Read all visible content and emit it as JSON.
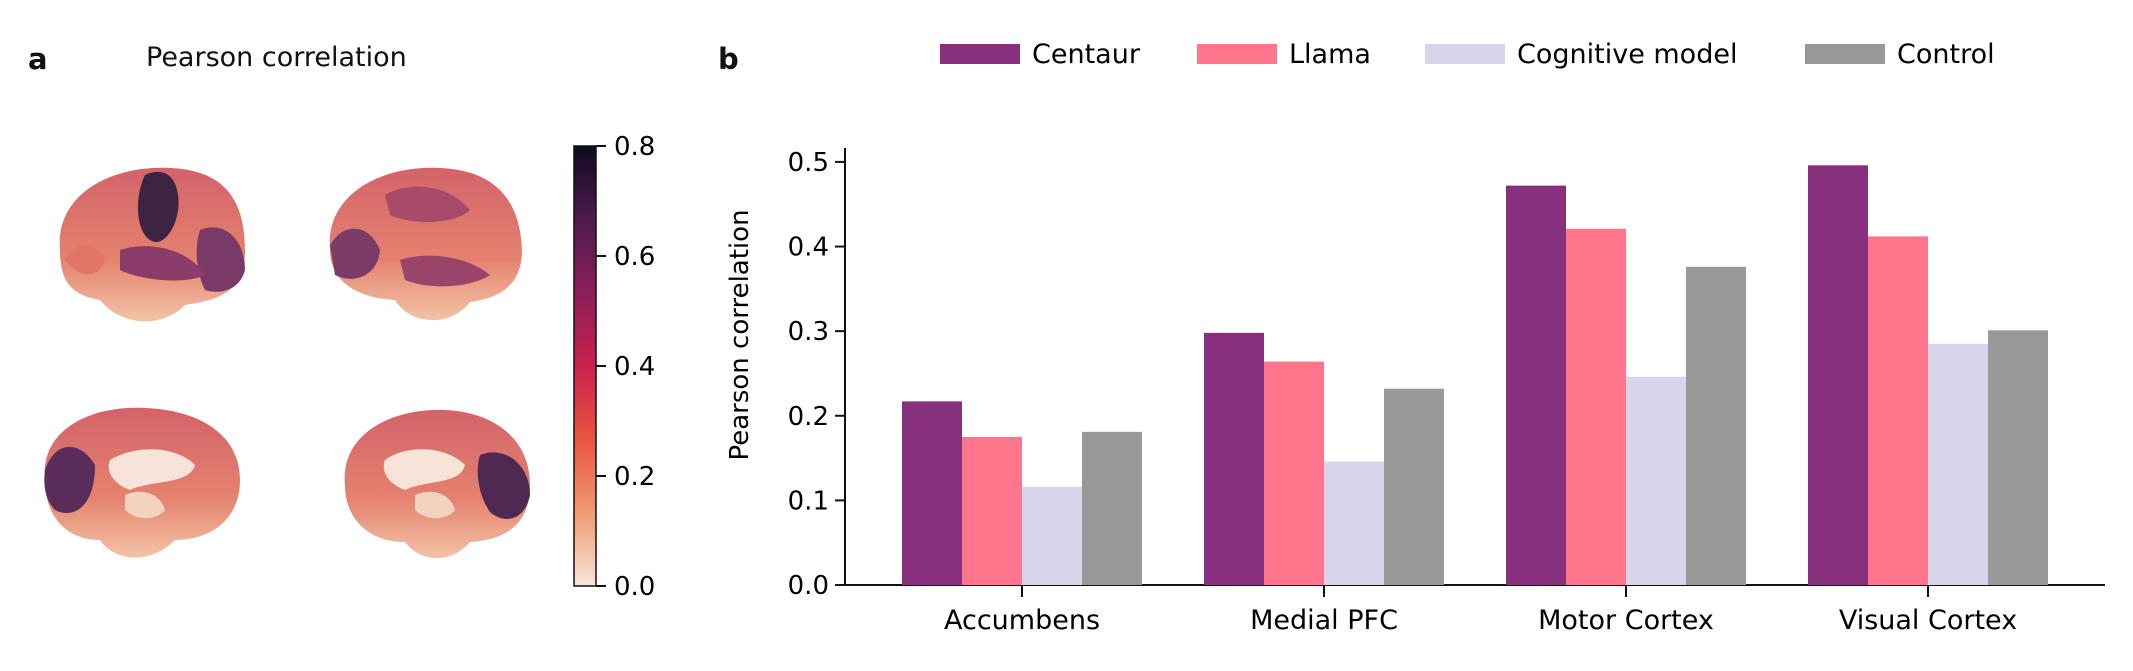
{
  "panels": {
    "a_label": "a",
    "b_label": "b"
  },
  "colorbar": {
    "title": "Pearson correlation",
    "ticks": [
      "0.0",
      "0.2",
      "0.4",
      "0.6",
      "0.8"
    ],
    "range": [
      0,
      0.8
    ],
    "colors": [
      "#f8e5d9",
      "#f09a70",
      "#e8553f",
      "#c9224b",
      "#8c1f5a",
      "#4e1a4e",
      "#0e0b22"
    ]
  },
  "chart_data": {
    "type": "bar",
    "categories": [
      "Accumbens",
      "Medial PFC",
      "Motor Cortex",
      "Visual Cortex"
    ],
    "series": [
      {
        "name": "Centaur",
        "color": "#87307d",
        "values": [
          0.217,
          0.298,
          0.472,
          0.496
        ]
      },
      {
        "name": "Llama",
        "color": "#fe758c",
        "values": [
          0.175,
          0.264,
          0.421,
          0.412
        ]
      },
      {
        "name": "Cognitive model",
        "color": "#d6d5e9",
        "values": [
          0.116,
          0.146,
          0.246,
          0.285
        ]
      },
      {
        "name": "Control",
        "color": "#999999",
        "values": [
          0.181,
          0.232,
          0.376,
          0.301
        ]
      }
    ],
    "title": "",
    "xlabel": "",
    "ylabel": "Pearson correlation",
    "ylim": [
      0,
      0.52
    ],
    "yticks": [
      "0.0",
      "0.1",
      "0.2",
      "0.3",
      "0.4",
      "0.5"
    ],
    "grid": false,
    "legend_position": "top"
  }
}
